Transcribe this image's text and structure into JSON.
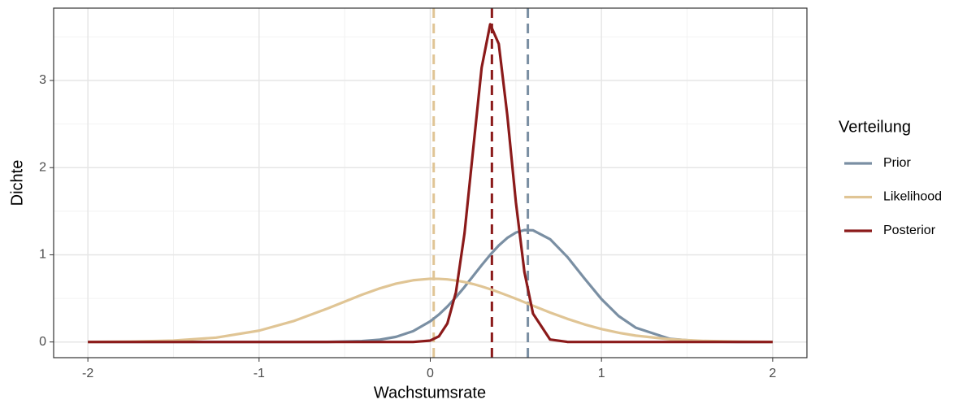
{
  "chart_data": {
    "type": "line",
    "x_label": "Wachstumsrate",
    "y_label": "Dichte",
    "legend_title": "Verteilung",
    "legend": "right",
    "grid": true,
    "x": [
      -2,
      -1.75,
      -1.5,
      -1.25,
      -1,
      -0.8,
      -0.6,
      -0.4,
      -0.3,
      -0.2,
      -0.1,
      0,
      0.05,
      0.1,
      0.15,
      0.2,
      0.25,
      0.3,
      0.35,
      0.4,
      0.45,
      0.5,
      0.55,
      0.6,
      0.7,
      0.8,
      0.9,
      1,
      1.1,
      1.2,
      1.4,
      1.6,
      1.8,
      2
    ],
    "series": [
      {
        "name": "Prior",
        "color": "#7a8fa3",
        "mean": 0.57,
        "values": [
          0,
          0,
          0,
          0,
          0,
          0,
          0.001,
          0.01,
          0.025,
          0.059,
          0.124,
          0.237,
          0.314,
          0.407,
          0.514,
          0.631,
          0.756,
          0.881,
          1.0,
          1.107,
          1.194,
          1.255,
          1.284,
          1.281,
          1.179,
          0.977,
          0.73,
          0.492,
          0.298,
          0.164,
          0.036,
          0.005,
          0,
          0
        ]
      },
      {
        "name": "Likelihood",
        "color": "#e0c595",
        "mean": 0.02,
        "values": [
          0.001,
          0.004,
          0.016,
          0.05,
          0.13,
          0.239,
          0.384,
          0.542,
          0.612,
          0.669,
          0.708,
          0.725,
          0.724,
          0.718,
          0.705,
          0.688,
          0.665,
          0.637,
          0.606,
          0.571,
          0.534,
          0.496,
          0.456,
          0.416,
          0.338,
          0.266,
          0.202,
          0.148,
          0.106,
          0.073,
          0.031,
          0.012,
          0.004,
          0.001
        ]
      },
      {
        "name": "Posterior",
        "color": "#8b1a1a",
        "mean": 0.36,
        "values": [
          0,
          0,
          0,
          0,
          0,
          0,
          0,
          0,
          0,
          0,
          0,
          0.016,
          0.064,
          0.213,
          0.572,
          1.247,
          2.2,
          3.146,
          3.645,
          3.42,
          2.6,
          1.604,
          0.801,
          0.326,
          0.028,
          0.001,
          0,
          0,
          0,
          0,
          0,
          0,
          0,
          0
        ]
      }
    ],
    "xlim": [
      -2.2,
      2.2
    ],
    "xticks": [
      -2,
      -1,
      0,
      1,
      2
    ],
    "xminor": [
      -1.5,
      -0.5,
      0.5,
      1.5
    ],
    "ylim": [
      -0.18,
      3.83
    ],
    "yticks": [
      0,
      1,
      2,
      3
    ],
    "yminor": [
      0.5,
      1.5,
      2.5,
      3.5
    ]
  }
}
